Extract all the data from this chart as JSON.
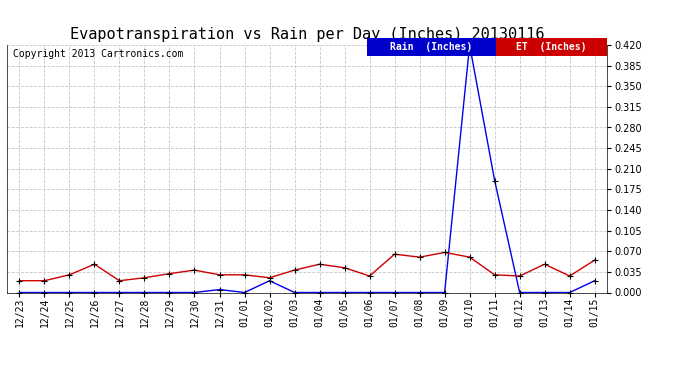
{
  "title": "Evapotranspiration vs Rain per Day (Inches) 20130116",
  "copyright_text": "Copyright 2013 Cartronics.com",
  "background_color": "#ffffff",
  "plot_bg_color": "#ffffff",
  "grid_color": "#c8c8c8",
  "x_labels": [
    "12/23",
    "12/24",
    "12/25",
    "12/26",
    "12/27",
    "12/28",
    "12/29",
    "12/30",
    "12/31",
    "01/01",
    "01/02",
    "01/03",
    "01/04",
    "01/05",
    "01/06",
    "01/07",
    "01/08",
    "01/09",
    "01/10",
    "01/11",
    "01/12",
    "01/13",
    "01/14",
    "01/15"
  ],
  "rain_values": [
    0.0,
    0.0,
    0.0,
    0.0,
    0.0,
    0.0,
    0.0,
    0.0,
    0.005,
    0.0,
    0.02,
    0.0,
    0.0,
    0.0,
    0.0,
    0.0,
    0.0,
    0.0,
    0.42,
    0.19,
    0.0,
    0.0,
    0.0,
    0.02
  ],
  "et_values": [
    0.02,
    0.02,
    0.03,
    0.048,
    0.02,
    0.025,
    0.032,
    0.038,
    0.03,
    0.03,
    0.025,
    0.038,
    0.048,
    0.042,
    0.028,
    0.065,
    0.06,
    0.068,
    0.06,
    0.03,
    0.028,
    0.048,
    0.028,
    0.055
  ],
  "rain_color": "#0000ee",
  "et_color": "#cc0000",
  "marker_color": "#000000",
  "ylim": [
    0.0,
    0.42
  ],
  "yticks": [
    0.0,
    0.035,
    0.07,
    0.105,
    0.14,
    0.175,
    0.21,
    0.245,
    0.28,
    0.315,
    0.35,
    0.385,
    0.42
  ],
  "legend_rain_bg": "#0000cc",
  "legend_et_bg": "#cc0000",
  "legend_rain_text": "Rain  (Inches)",
  "legend_et_text": "ET  (Inches)",
  "title_fontsize": 11,
  "copyright_fontsize": 7,
  "axis_fontsize": 7
}
